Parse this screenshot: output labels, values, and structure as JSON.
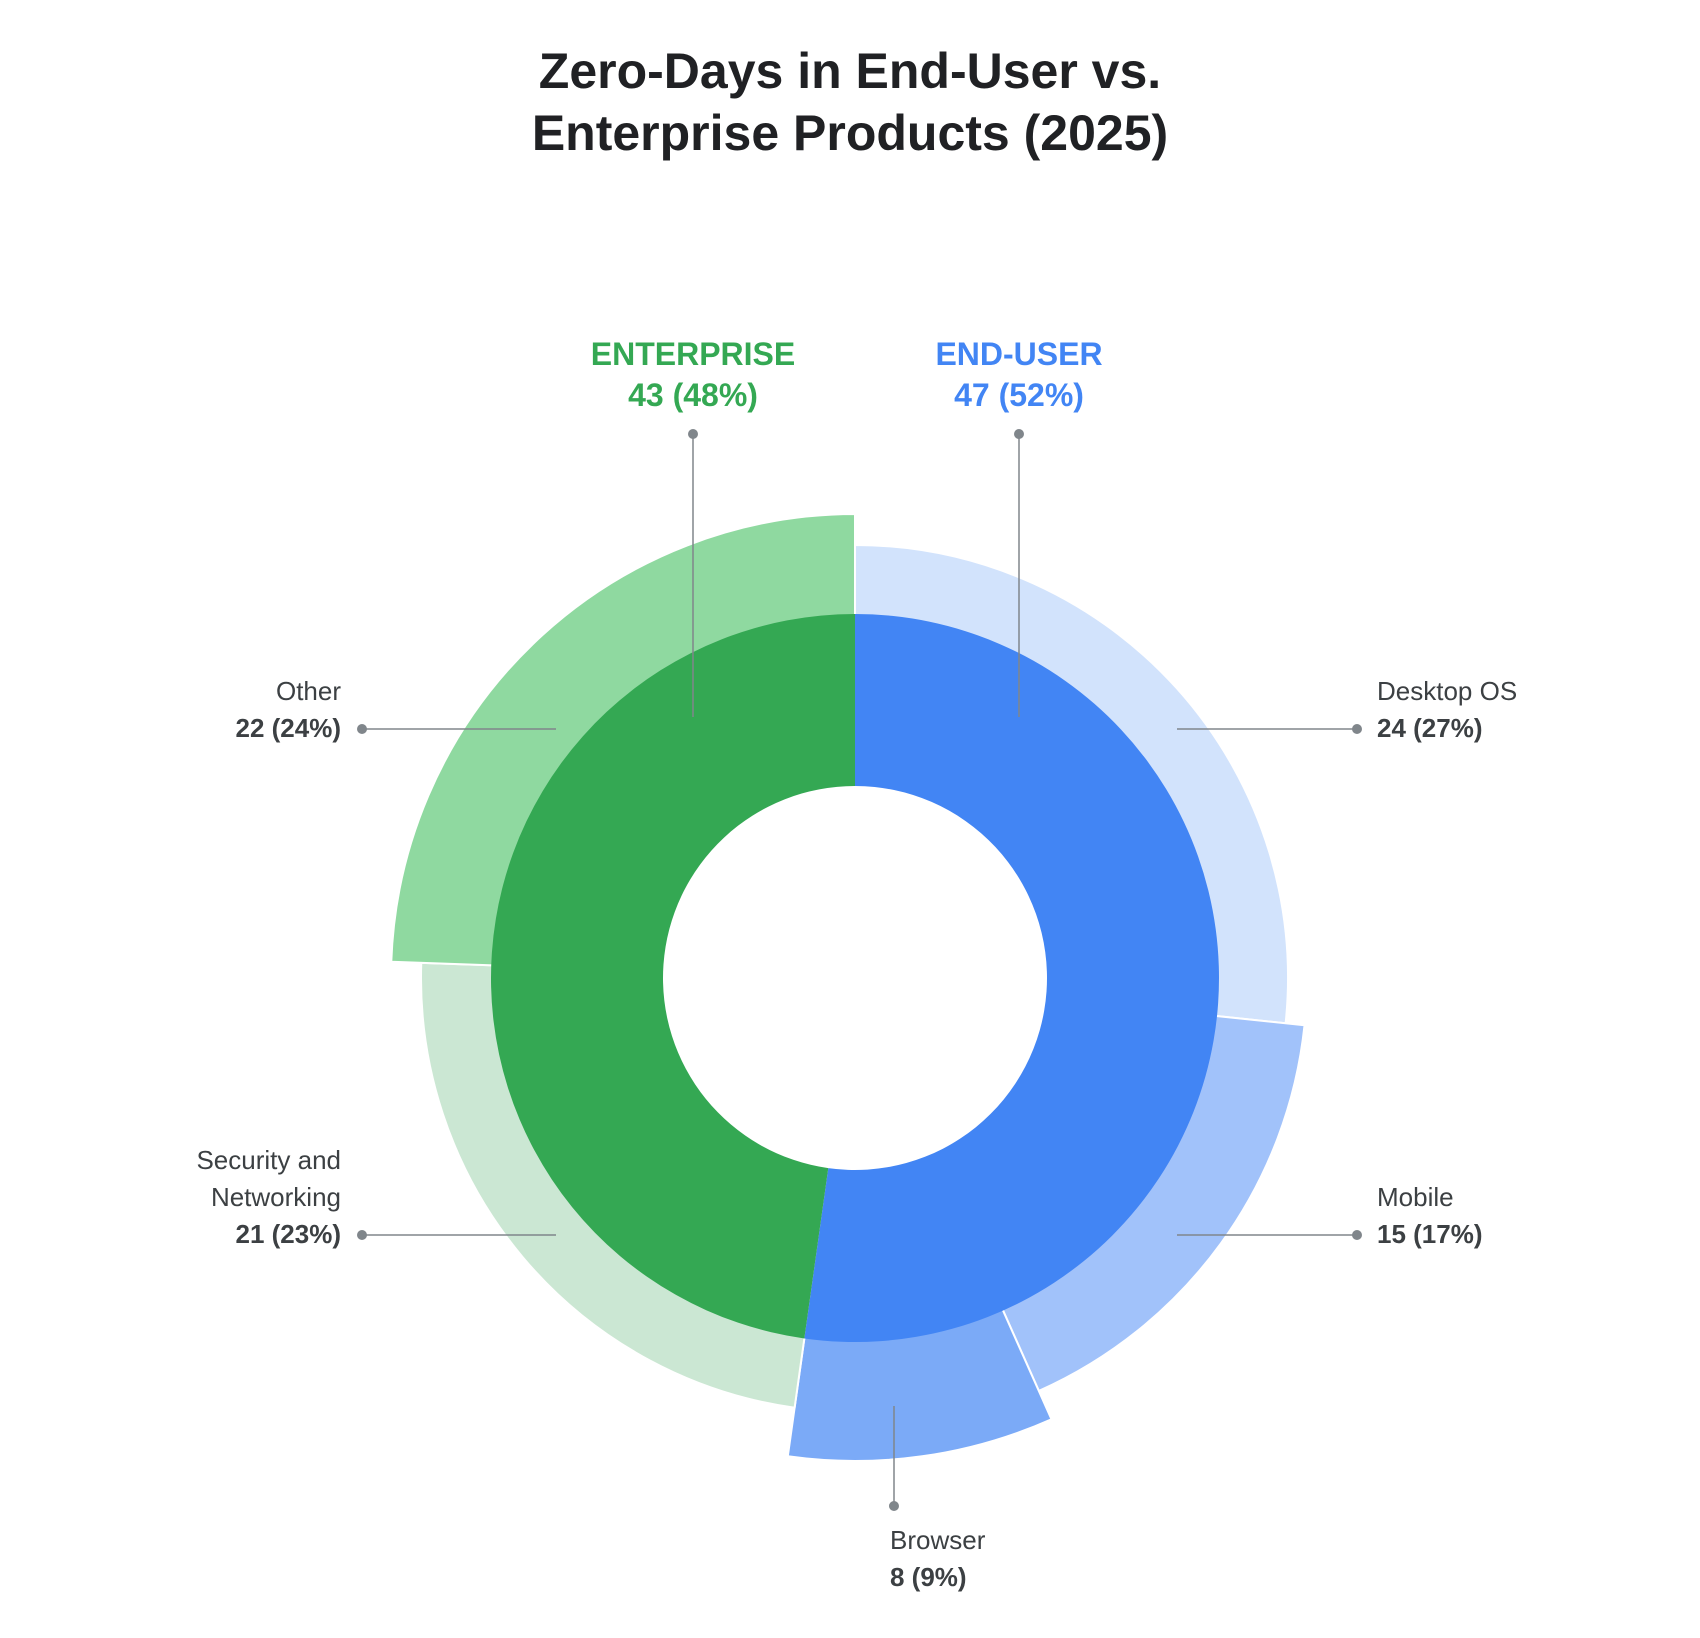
{
  "chart_data": {
    "type": "sunburst",
    "title": "Zero-Days in End-User vs. Enterprise Products (2025)",
    "inner": {
      "categories": [
        "END-USER",
        "ENTERPRISE"
      ],
      "values": [
        47,
        43
      ],
      "value_labels": [
        "47 (52%)",
        "43 (48%)"
      ],
      "colors": [
        "#4285f4",
        "#34a853"
      ]
    },
    "outer": {
      "categories": [
        "Desktop OS",
        "Mobile",
        "Browser",
        "Security and Networking",
        "Other"
      ],
      "values": [
        24,
        15,
        8,
        21,
        22
      ],
      "value_labels": [
        "24 (27%)",
        "15 (17%)",
        "8 (9%)",
        "21 (23%)",
        "22 (24%)"
      ],
      "colors": [
        "#d2e3fc",
        "#a1c2fa",
        "#7baaf7",
        "#cbe7d3",
        "#8fd9a0"
      ]
    }
  }
}
